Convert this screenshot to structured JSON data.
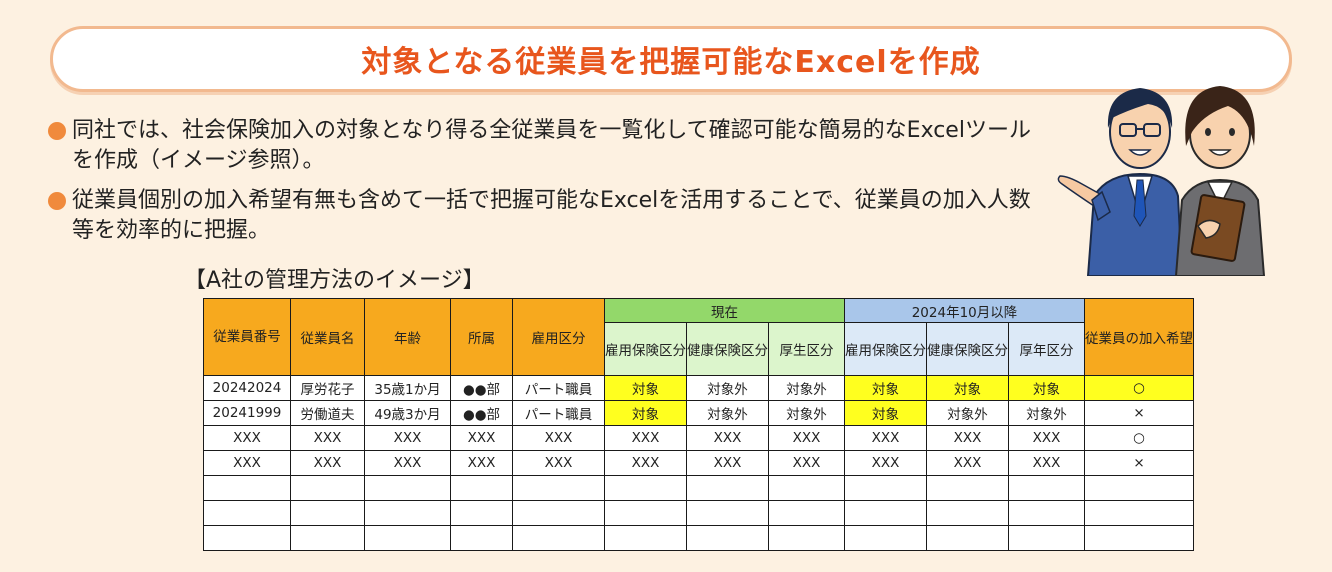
{
  "title": "対象となる従業員を把握可能なExcelを作成",
  "bullets": [
    "同社では、社会保険加入の対象となり得る全従業員を一覧化して確認可能な簡易的なExcelツールを作成（イメージ参照）。",
    "従業員個別の加入希望有無も含めて一括で把握可能なExcelを活用することで、従業員の加入人数等を効率的に把握。"
  ],
  "table_caption": "【A社の管理方法のイメージ】",
  "table": {
    "headers": {
      "emp_no": "従業員番号",
      "emp_name": "従業員名",
      "age": "年齢",
      "dept": "所属",
      "employment_type": "雇用区分",
      "group_current": "現在",
      "group_future": "2024年10月以降",
      "wish": "従業員の加入希望",
      "current_cols": [
        "雇用保険区分",
        "健康保険区分",
        "厚生区分"
      ],
      "future_cols": [
        "雇用保険区分",
        "健康保険区分",
        "厚年区分"
      ]
    },
    "rows": [
      [
        "20242024",
        "厚労花子",
        "35歳1か月",
        "●●部",
        "パート職員",
        "対象",
        "対象外",
        "対象外",
        "対象",
        "対象",
        "対象",
        "○"
      ],
      [
        "20241999",
        "労働道夫",
        "49歳3か月",
        "●●部",
        "パート職員",
        "対象",
        "対象外",
        "対象外",
        "対象",
        "対象外",
        "対象外",
        "×"
      ],
      [
        "XXX",
        "XXX",
        "XXX",
        "XXX",
        "XXX",
        "XXX",
        "XXX",
        "XXX",
        "XXX",
        "XXX",
        "XXX",
        "○"
      ],
      [
        "XXX",
        "XXX",
        "XXX",
        "XXX",
        "XXX",
        "XXX",
        "XXX",
        "XXX",
        "XXX",
        "XXX",
        "XXX",
        "×"
      ],
      [
        "",
        "",
        "",
        "",
        "",
        "",
        "",
        "",
        "",
        "",
        "",
        ""
      ],
      [
        "",
        "",
        "",
        "",
        "",
        "",
        "",
        "",
        "",
        "",
        "",
        ""
      ],
      [
        "",
        "",
        "",
        "",
        "",
        "",
        "",
        "",
        "",
        "",
        "",
        ""
      ]
    ],
    "highlight": [
      [
        false,
        false,
        false,
        false,
        false,
        true,
        false,
        false,
        true,
        true,
        true,
        true
      ],
      [
        false,
        false,
        false,
        false,
        false,
        true,
        false,
        false,
        true,
        false,
        false,
        false
      ]
    ]
  },
  "colors": {
    "title": "#e8561d",
    "header_orange": "#f7a91e",
    "header_green": "#93d86a",
    "header_blue": "#a9c6ea",
    "highlight": "#ffff1f"
  },
  "illustration": "business-people-illustration"
}
